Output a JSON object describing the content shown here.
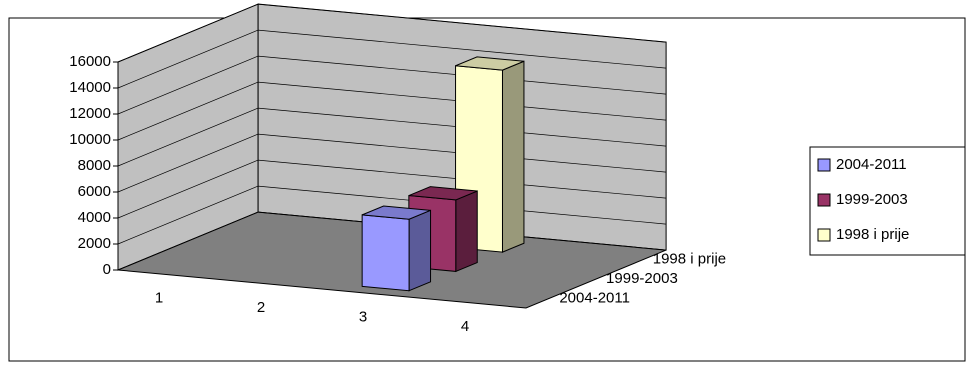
{
  "chart_data": {
    "type": "bar3d",
    "categories": [
      "1",
      "2",
      "3",
      "4"
    ],
    "series": [
      {
        "name": "2004-2011",
        "color": "#9999ff",
        "values": [
          null,
          null,
          5500,
          null
        ]
      },
      {
        "name": "1999-2003",
        "color": "#993366",
        "values": [
          null,
          null,
          5500,
          null
        ]
      },
      {
        "name": "1998 i prije",
        "color": "#ffffcc",
        "values": [
          null,
          null,
          14000,
          null
        ]
      }
    ],
    "ylim": [
      0,
      16000
    ],
    "yticks": [
      0,
      2000,
      4000,
      6000,
      8000,
      10000,
      12000,
      14000,
      16000
    ],
    "grid": true,
    "legend": "right"
  }
}
